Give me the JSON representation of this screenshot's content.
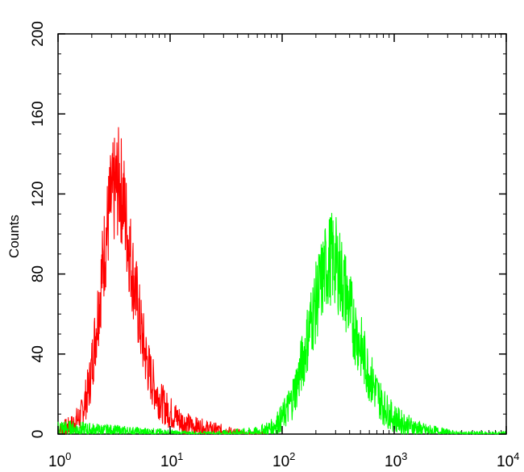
{
  "chart_data": {
    "type": "line",
    "title": "",
    "xlabel": "",
    "ylabel": "Counts",
    "x_scale": "log",
    "xlim": [
      1,
      10000
    ],
    "ylim": [
      0,
      200
    ],
    "x_ticks": [
      {
        "base": "10",
        "exp": "0"
      },
      {
        "base": "10",
        "exp": "1"
      },
      {
        "base": "10",
        "exp": "2"
      },
      {
        "base": "10",
        "exp": "3"
      },
      {
        "base": "10",
        "exp": "4"
      }
    ],
    "y_ticks": [
      "0",
      "40",
      "80",
      "120",
      "160",
      "200"
    ],
    "y_tick_values": [
      0,
      40,
      80,
      120,
      160,
      200
    ],
    "grid": false,
    "series": [
      {
        "color": "#ff0000",
        "x": [
          1.0,
          1.3,
          1.6,
          1.9,
          2.1,
          2.3,
          2.6,
          2.9,
          3.2,
          3.5,
          3.8,
          4.1,
          4.5,
          5.0,
          5.5,
          6.0,
          6.6,
          7.4,
          8.3,
          9.5,
          11,
          13,
          16,
          20,
          26,
          35,
          50,
          70
        ],
        "y": [
          2,
          4,
          9,
          24,
          44,
          64,
          92,
          113,
          122,
          126,
          119,
          103,
          86,
          68,
          52,
          40,
          30,
          22,
          16,
          12,
          9,
          6,
          4,
          3,
          2,
          1,
          0,
          0
        ]
      },
      {
        "color": "#00ff00",
        "x": [
          1.0,
          2.0,
          5.0,
          20,
          60,
          80,
          100,
          120,
          140,
          160,
          180,
          210,
          240,
          270,
          300,
          340,
          380,
          430,
          500,
          580,
          680,
          800,
          950,
          1150,
          1400,
          1800,
          2500,
          4000,
          10000
        ],
        "y": [
          3,
          2,
          1,
          0,
          1,
          3,
          8,
          16,
          28,
          42,
          56,
          70,
          82,
          88,
          86,
          78,
          68,
          56,
          44,
          32,
          22,
          14,
          9,
          6,
          4,
          2,
          1,
          0,
          0
        ]
      }
    ]
  },
  "colors": {
    "frame": "#000000",
    "background": "#ffffff"
  }
}
